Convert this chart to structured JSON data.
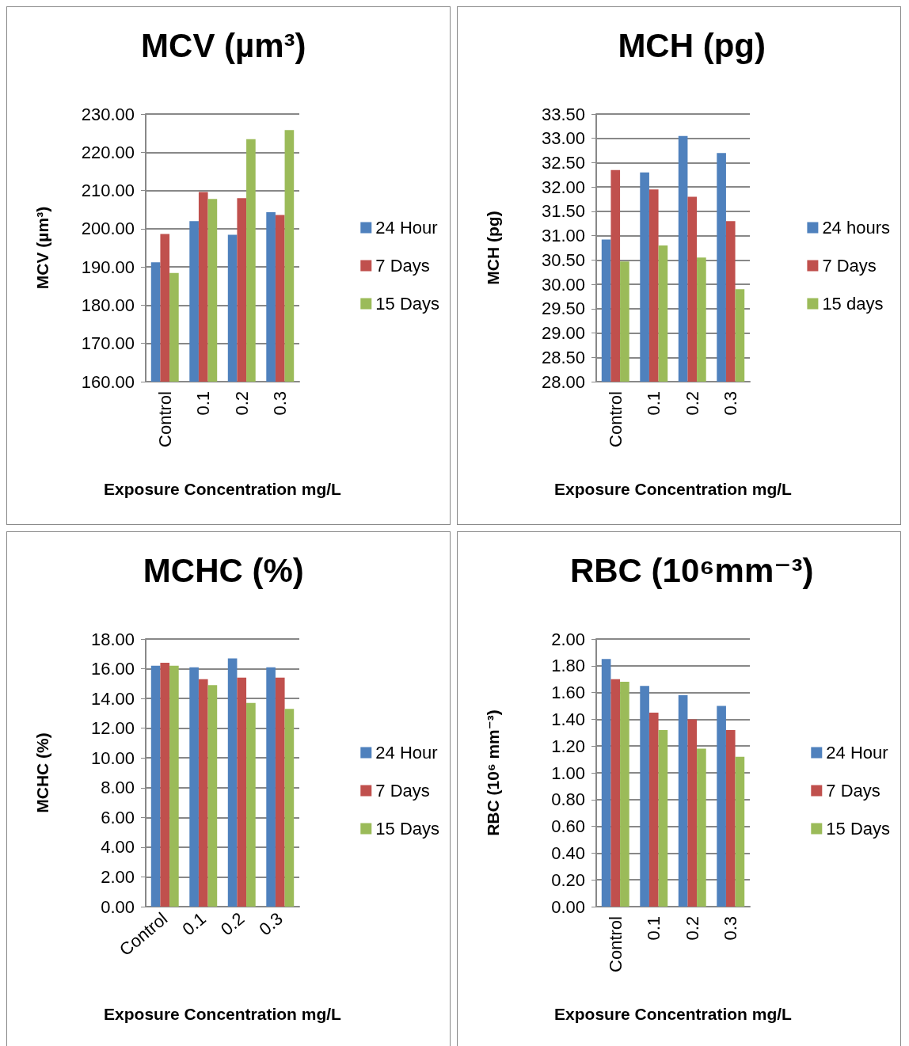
{
  "chart_data": [
    {
      "type": "bar",
      "title": "MCV (µm³)",
      "xlabel": "Exposure Concentration mg/L",
      "ylabel": "MCV (µm³)",
      "categories": [
        "Control",
        "0.1",
        "0.2",
        "0.3"
      ],
      "series": [
        {
          "name": "24 Hour",
          "color": "#4f81bd",
          "values": [
            191.2,
            202,
            198.4,
            204.3
          ]
        },
        {
          "name": "7 Days",
          "color": "#c0504d",
          "values": [
            198.6,
            209.6,
            208,
            203.6
          ]
        },
        {
          "name": "15 Days",
          "color": "#9bbb59",
          "values": [
            188.4,
            207.8,
            223.4,
            225.8
          ]
        }
      ],
      "ylim": [
        160,
        230
      ],
      "yticks": [
        {
          "value": 160,
          "label": "160.00"
        },
        {
          "value": 170,
          "label": "170.00"
        },
        {
          "value": 180,
          "label": "180.00"
        },
        {
          "value": 190,
          "label": "190.00"
        },
        {
          "value": 200,
          "label": "200.00"
        },
        {
          "value": 210,
          "label": "210.00"
        },
        {
          "value": 220,
          "label": "220.00"
        },
        {
          "value": 230,
          "label": "230.00"
        }
      ],
      "grid": "y",
      "legend": "right"
    },
    {
      "type": "bar",
      "title": "MCH (pg)",
      "xlabel": "Exposure Concentration mg/L",
      "ylabel": "MCH (pg)",
      "categories": [
        "Control",
        "0.1",
        "0.2",
        "0.3"
      ],
      "series": [
        {
          "name": "24 hours",
          "color": "#4f81bd",
          "values": [
            30.92,
            32.3,
            33.05,
            32.7
          ]
        },
        {
          "name": "7 Days",
          "color": "#c0504d",
          "values": [
            32.35,
            31.95,
            31.8,
            31.3
          ]
        },
        {
          "name": "15 days",
          "color": "#9bbb59",
          "values": [
            30.47,
            30.8,
            30.55,
            29.9
          ]
        }
      ],
      "ylim": [
        28,
        33.5
      ],
      "yticks": [
        {
          "value": 28,
          "label": "28.00"
        },
        {
          "value": 28.5,
          "label": "28.50"
        },
        {
          "value": 29,
          "label": "29.00"
        },
        {
          "value": 29.5,
          "label": "29.50"
        },
        {
          "value": 30,
          "label": "30.00"
        },
        {
          "value": 30.5,
          "label": "30.50"
        },
        {
          "value": 31,
          "label": "31.00"
        },
        {
          "value": 31.5,
          "label": "31.50"
        },
        {
          "value": 32,
          "label": "32.00"
        },
        {
          "value": 32.5,
          "label": "32.50"
        },
        {
          "value": 33,
          "label": "33.00"
        },
        {
          "value": 33.5,
          "label": "33.50"
        }
      ],
      "grid": "y",
      "legend": "right"
    },
    {
      "type": "bar",
      "title": "MCHC (%)",
      "xlabel": "Exposure Concentration mg/L",
      "ylabel": "MCHC (%)",
      "categories": [
        "Control",
        "0.1",
        "0.2",
        "0.3"
      ],
      "series": [
        {
          "name": "24 Hour",
          "color": "#4f81bd",
          "values": [
            16.2,
            16.1,
            16.7,
            16.1
          ]
        },
        {
          "name": "7 Days",
          "color": "#c0504d",
          "values": [
            16.4,
            15.3,
            15.4,
            15.4
          ]
        },
        {
          "name": "15 Days",
          "color": "#9bbb59",
          "values": [
            16.2,
            14.9,
            13.7,
            13.3
          ]
        }
      ],
      "ylim": [
        0,
        18
      ],
      "yticks": [
        {
          "value": 0,
          "label": "0.00"
        },
        {
          "value": 2,
          "label": "2.00"
        },
        {
          "value": 4,
          "label": "4.00"
        },
        {
          "value": 6,
          "label": "6.00"
        },
        {
          "value": 8,
          "label": "8.00"
        },
        {
          "value": 10,
          "label": "10.00"
        },
        {
          "value": 12,
          "label": "12.00"
        },
        {
          "value": 14,
          "label": "14.00"
        },
        {
          "value": 16,
          "label": "16.00"
        },
        {
          "value": 18,
          "label": "18.00"
        }
      ],
      "grid": "y",
      "legend": "right"
    },
    {
      "type": "bar",
      "title": "RBC (10⁶mm⁻³)",
      "xlabel": "Exposure Concentration mg/L",
      "ylabel": "RBC (10⁶ mm⁻³)",
      "categories": [
        "Control",
        "0.1",
        "0.2",
        "0.3"
      ],
      "series": [
        {
          "name": "24 Hour",
          "color": "#4f81bd",
          "values": [
            1.85,
            1.65,
            1.58,
            1.5
          ]
        },
        {
          "name": "7 Days",
          "color": "#c0504d",
          "values": [
            1.7,
            1.45,
            1.4,
            1.32
          ]
        },
        {
          "name": "15 Days",
          "color": "#9bbb59",
          "values": [
            1.68,
            1.32,
            1.18,
            1.12
          ]
        }
      ],
      "ylim": [
        0,
        2
      ],
      "yticks": [
        {
          "value": 0,
          "label": "0.00"
        },
        {
          "value": 0.2,
          "label": "0.20"
        },
        {
          "value": 0.4,
          "label": "0.40"
        },
        {
          "value": 0.6,
          "label": "0.60"
        },
        {
          "value": 0.8,
          "label": "0.80"
        },
        {
          "value": 1,
          "label": "1.00"
        },
        {
          "value": 1.2,
          "label": "1.20"
        },
        {
          "value": 1.4,
          "label": "1.40"
        },
        {
          "value": 1.6,
          "label": "1.60"
        },
        {
          "value": 1.8,
          "label": "1.80"
        },
        {
          "value": 2,
          "label": "2.00"
        }
      ],
      "grid": "y",
      "legend": "right"
    }
  ]
}
